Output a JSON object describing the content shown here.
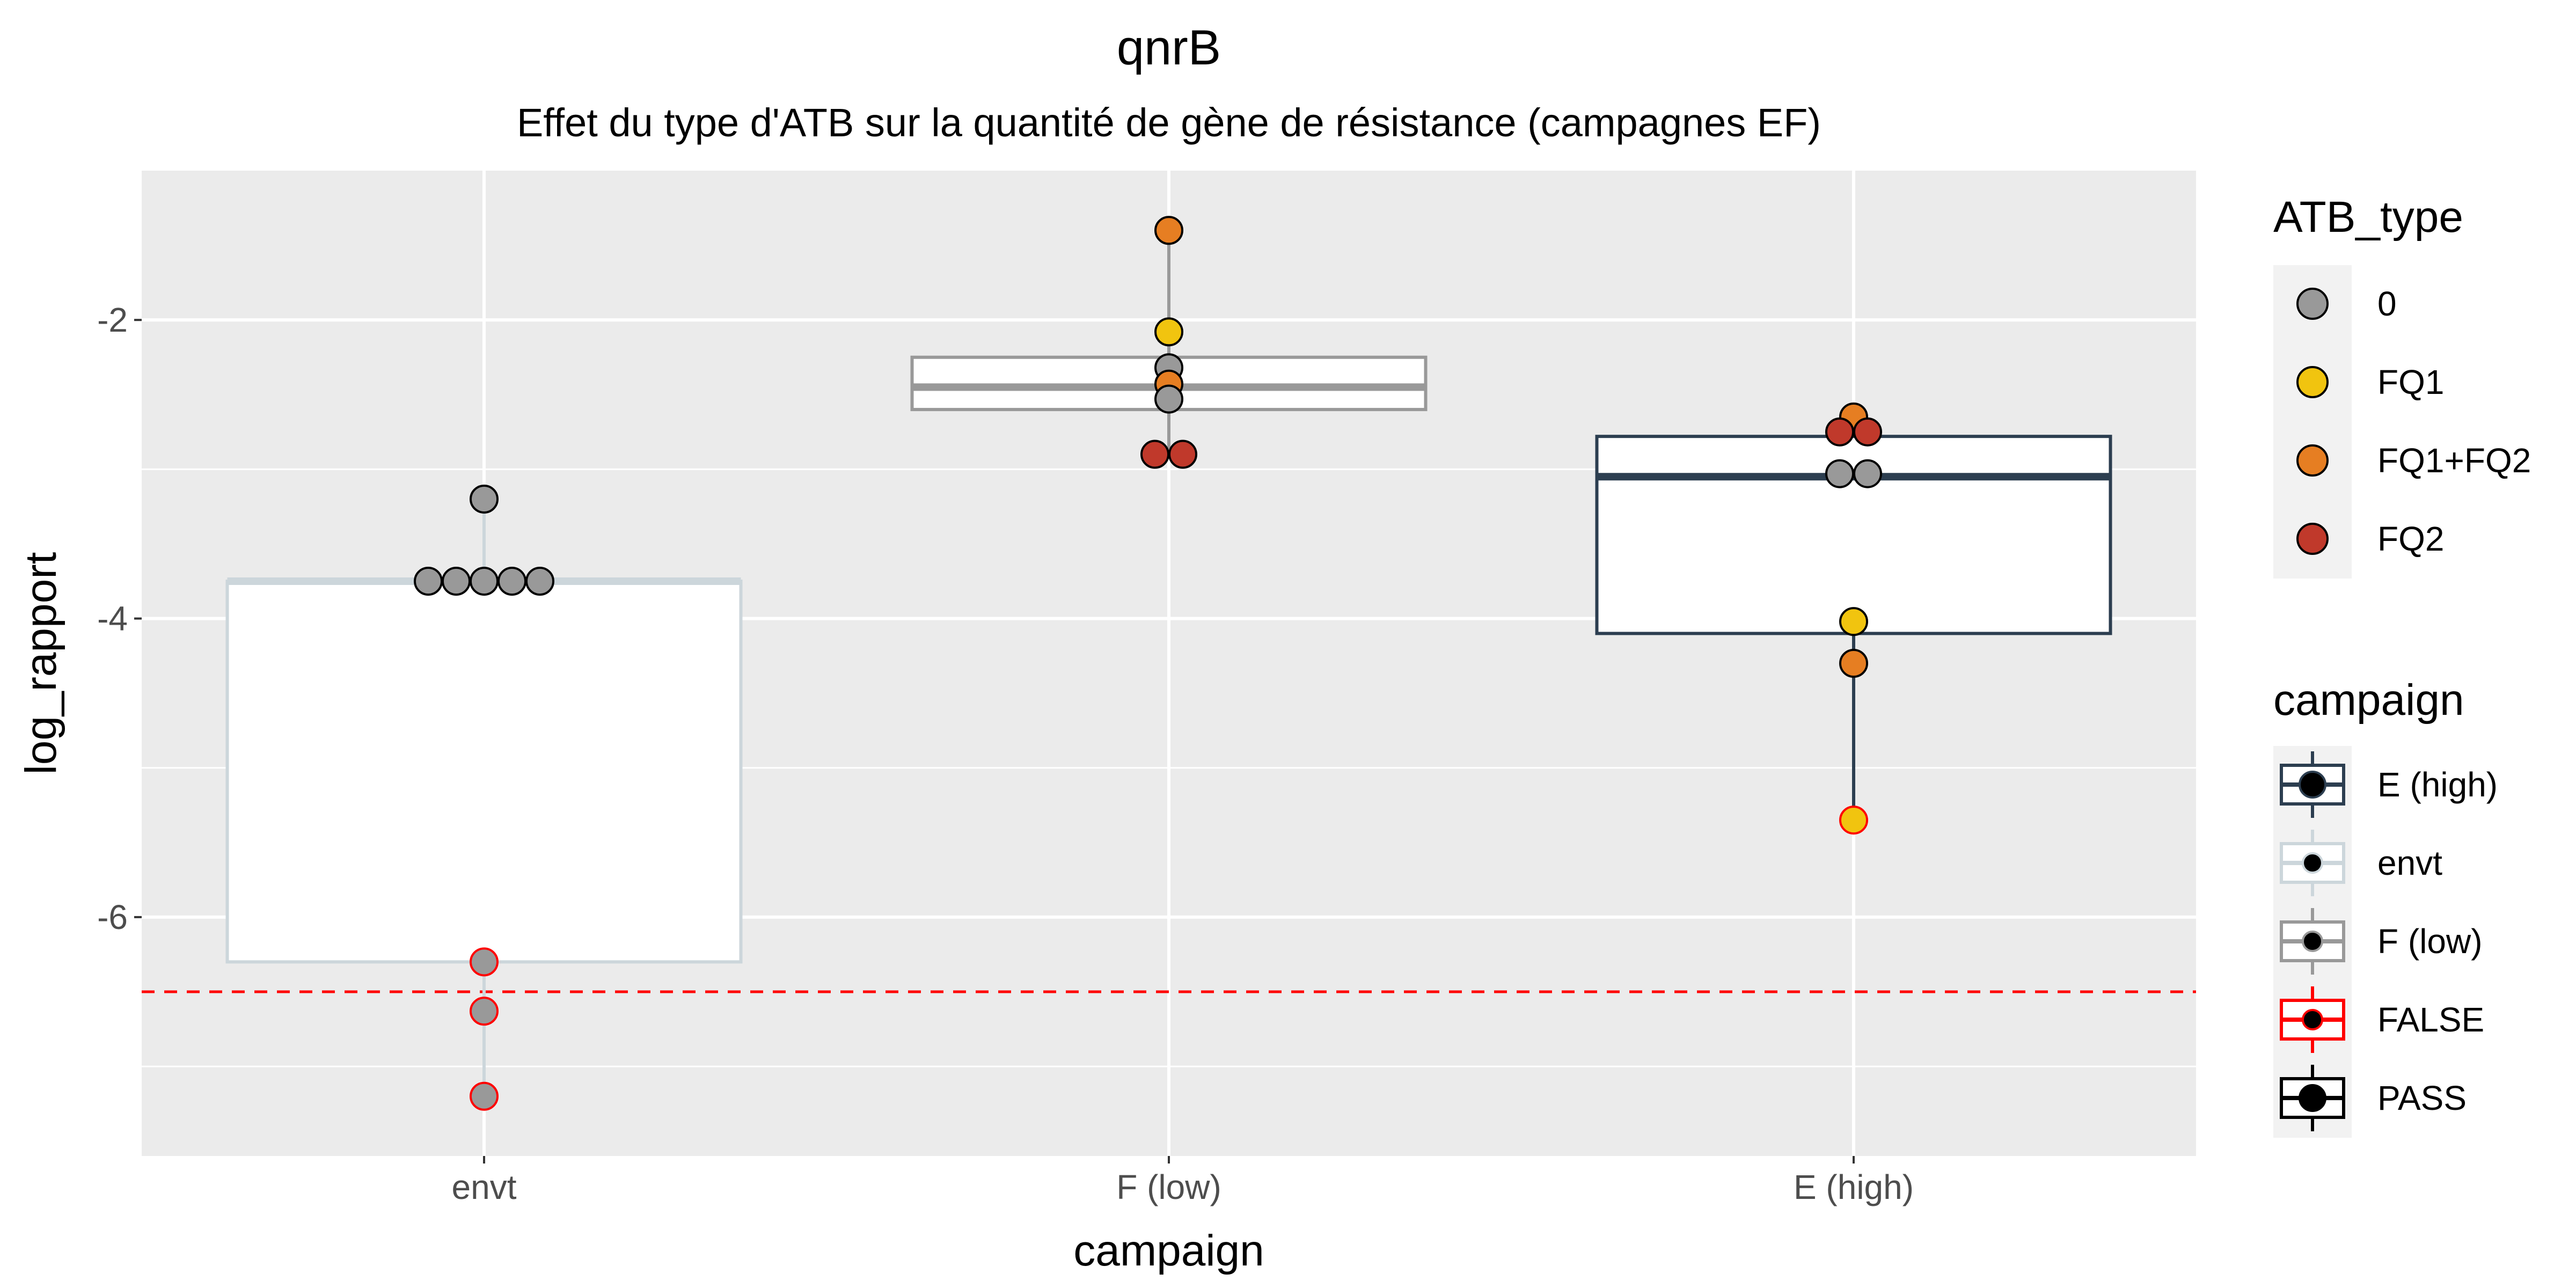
{
  "chart_data": {
    "type": "box+dotplot",
    "title": "qnrB",
    "subtitle": "Effet du type d'ATB sur la quantité de gène de résistance (campagnes EF)",
    "xlabel": "campaign",
    "ylabel": "log_rapport",
    "categories": [
      "envt",
      "F (low)",
      "E (high)"
    ],
    "ylim": [
      -7.6,
      -1.0
    ],
    "yticks": [
      -2,
      -4,
      -6
    ],
    "ytick_labels": [
      "-2",
      "-4",
      "-6"
    ],
    "grid": true,
    "reference_line": {
      "y": -6.5,
      "style": "dashed",
      "color": "#ff0000"
    },
    "boxes": [
      {
        "category": "envt",
        "q1": -6.3,
        "median": -3.75,
        "q3": -3.75,
        "whisker_low": -7.2,
        "whisker_high": -3.2,
        "color": "#ccd6db"
      },
      {
        "category": "F (low)",
        "q1": -2.6,
        "median": -2.45,
        "q3": -2.25,
        "whisker_low": -2.9,
        "whisker_high": -1.4,
        "color": "#999999"
      },
      {
        "category": "E (high)",
        "q1": -4.1,
        "median": -3.05,
        "q3": -2.78,
        "whisker_low": -5.35,
        "whisker_high": -2.65,
        "color": "#2c3e50"
      }
    ],
    "points": [
      {
        "category": "envt",
        "y": -3.2,
        "atb": "0",
        "status": "PASS"
      },
      {
        "category": "envt",
        "y": -3.75,
        "atb": "0",
        "status": "PASS"
      },
      {
        "category": "envt",
        "y": -3.75,
        "atb": "0",
        "status": "PASS"
      },
      {
        "category": "envt",
        "y": -3.75,
        "atb": "0",
        "status": "PASS"
      },
      {
        "category": "envt",
        "y": -3.75,
        "atb": "0",
        "status": "PASS"
      },
      {
        "category": "envt",
        "y": -3.75,
        "atb": "0",
        "status": "PASS"
      },
      {
        "category": "envt",
        "y": -6.3,
        "atb": "0",
        "status": "FALSE"
      },
      {
        "category": "envt",
        "y": -6.63,
        "atb": "0",
        "status": "FALSE"
      },
      {
        "category": "envt",
        "y": -7.2,
        "atb": "0",
        "status": "FALSE"
      },
      {
        "category": "F (low)",
        "y": -1.4,
        "atb": "FQ1+FQ2",
        "status": "PASS"
      },
      {
        "category": "F (low)",
        "y": -2.08,
        "atb": "FQ1",
        "status": "PASS"
      },
      {
        "category": "F (low)",
        "y": -2.32,
        "atb": "0",
        "status": "PASS"
      },
      {
        "category": "F (low)",
        "y": -2.43,
        "atb": "FQ1+FQ2",
        "status": "PASS"
      },
      {
        "category": "F (low)",
        "y": -2.53,
        "atb": "0",
        "status": "PASS"
      },
      {
        "category": "F (low)",
        "y": -2.9,
        "atb": "FQ2",
        "status": "PASS"
      },
      {
        "category": "F (low)",
        "y": -2.9,
        "atb": "FQ2",
        "status": "PASS"
      },
      {
        "category": "E (high)",
        "y": -2.65,
        "atb": "FQ1+FQ2",
        "status": "PASS"
      },
      {
        "category": "E (high)",
        "y": -2.75,
        "atb": "FQ2",
        "status": "PASS"
      },
      {
        "category": "E (high)",
        "y": -2.75,
        "atb": "FQ2",
        "status": "PASS"
      },
      {
        "category": "E (high)",
        "y": -3.03,
        "atb": "0",
        "status": "PASS"
      },
      {
        "category": "E (high)",
        "y": -3.03,
        "atb": "0",
        "status": "PASS"
      },
      {
        "category": "E (high)",
        "y": -4.02,
        "atb": "FQ1",
        "status": "PASS"
      },
      {
        "category": "E (high)",
        "y": -4.3,
        "atb": "FQ1+FQ2",
        "status": "PASS"
      },
      {
        "category": "E (high)",
        "y": -5.35,
        "atb": "FQ1",
        "status": "FALSE"
      }
    ],
    "legends": [
      {
        "title": "ATB_type",
        "placement": "right",
        "items": [
          {
            "label": "0",
            "color": "#999999"
          },
          {
            "label": "FQ1",
            "color": "#f1c40f"
          },
          {
            "label": "FQ1+FQ2",
            "color": "#e67e22"
          },
          {
            "label": "FQ2",
            "color": "#c0392b"
          }
        ]
      },
      {
        "title": "campaign",
        "placement": "right",
        "items": [
          {
            "label": "E (high)",
            "color": "#2c3e50"
          },
          {
            "label": "envt",
            "color": "#ccd6db"
          },
          {
            "label": "F (low)",
            "color": "#999999"
          },
          {
            "label": "FALSE",
            "color": "#ff0000"
          },
          {
            "label": "PASS",
            "color": "#000000"
          }
        ]
      }
    ]
  },
  "colors": {
    "panel_bg": "#ebebeb",
    "grid": "#ffffff",
    "point_outline": "#000000",
    "false_outline": "#ff0000"
  }
}
